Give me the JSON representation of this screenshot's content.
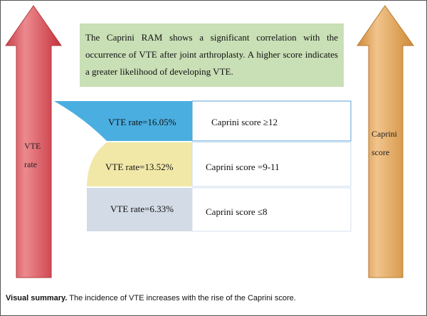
{
  "colors": {
    "left_arrow": "#d9535b",
    "right_arrow": "#e3ac64",
    "summary_box": "#c9dfb6",
    "tier_high": "#4aaee0",
    "tier_mid": "#f1e8a8",
    "tier_low": "#d3dbe6",
    "tier_border": "#5aa0d8"
  },
  "left_arrow": {
    "label_line1": "VTE",
    "label_line2": "rate"
  },
  "right_arrow": {
    "label_line1": "Caprini",
    "label_line2": "score"
  },
  "summary": {
    "text": "The Caprini RAM shows a significant correlation with the occurrence of VTE after joint arthroplasty. A higher score indicates a greater likelihood of developing VTE."
  },
  "tiers": [
    {
      "rate": "VTE rate=16.05%",
      "score": "Caprini score ≥12"
    },
    {
      "rate": "VTE rate=13.52%",
      "score": "Caprini score =9-11"
    },
    {
      "rate": "VTE rate=6.33%",
      "score": "Caprini score ≤8"
    }
  ],
  "caption": {
    "bold": "Visual summary.",
    "text": " The incidence of VTE increases with the rise of the Caprini score."
  }
}
